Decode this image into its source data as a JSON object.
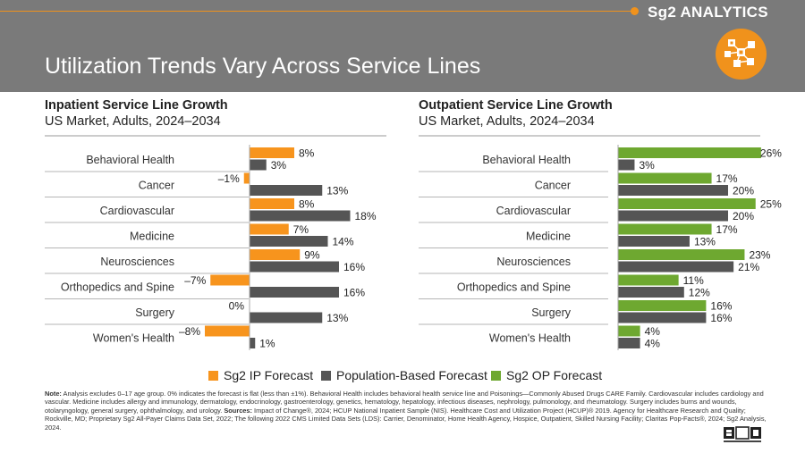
{
  "brand": "Sg2 ANALYTICS",
  "title": "Utilization Trends Vary Across Service Lines",
  "colors": {
    "ip": "#f7941d",
    "pop": "#555555",
    "op": "#6ea830",
    "accent": "#f0921c"
  },
  "legend": [
    {
      "label": "Sg2 IP Forecast",
      "color": "#f7941d"
    },
    {
      "label": "Population-Based Forecast",
      "color": "#555555"
    },
    {
      "label": "Sg2 OP Forecast",
      "color": "#6ea830"
    }
  ],
  "note": {
    "label_note": "Note:",
    "text1": " Analysis excludes 0–17 age group. 0% indicates the forecast is flat (less than ±1%). Behavioral Health includes behavioral health service line and Poisonings—Commonly Abused Drugs CARE Family. Cardiovascular includes cardiology and vascular. Medicine includes allergy and immunology, dermatology, endocrinology, gastroenterology, genetics, hematology, hepatology, infectious diseases, nephrology, pulmonology, and rheumatology. Surgery includes burns and wounds, otolaryngology, general surgery, ophthalmology, and urology. ",
    "label_sources": "Sources:",
    "text2": " Impact of Change®, 2024; HCUP National Inpatient Sample (NIS). Healthcare Cost and Utilization Project (HCUP)® 2019. Agency for Healthcare Research and Quality; Rockville, MD; Proprietary Sg2 All-Payer Claims Data Set, 2022; The following 2022 CMS Limited Data Sets (LDS): Carrier, Denominator, Home Health Agency, Hospice, Outpatient, Skilled Nursing Facility; Claritas Pop-Facts®, 2024; Sg2 Analysis, 2024."
  },
  "chart_data": [
    {
      "type": "bar",
      "orientation": "horizontal",
      "title": "Inpatient Service Line Growth",
      "subtitle": "US Market, Adults, 2024–2034",
      "categories": [
        "Behavioral Health",
        "Cancer",
        "Cardiovascular",
        "Medicine",
        "Neurosciences",
        "Orthopedics and Spine",
        "Surgery",
        "Women's Health"
      ],
      "series": [
        {
          "name": "Sg2 IP Forecast",
          "color": "#f7941d",
          "values": [
            8,
            -1,
            8,
            7,
            9,
            -7,
            0,
            -8
          ]
        },
        {
          "name": "Population-Based Forecast",
          "color": "#555555",
          "values": [
            3,
            13,
            18,
            14,
            16,
            16,
            13,
            1
          ]
        }
      ],
      "labels": [
        [
          "8%",
          "–1%",
          "8%",
          "7%",
          "9%",
          "–7%",
          "0%",
          "–8%"
        ],
        [
          "3%",
          "13%",
          "18%",
          "14%",
          "16%",
          "16%",
          "13%",
          "1%"
        ]
      ],
      "unit": "%"
    },
    {
      "type": "bar",
      "orientation": "horizontal",
      "title": "Outpatient Service Line Growth",
      "subtitle": "US Market, Adults, 2024–2034",
      "categories": [
        "Behavioral Health",
        "Cancer",
        "Cardiovascular",
        "Medicine",
        "Neurosciences",
        "Orthopedics and Spine",
        "Surgery",
        "Women's Health"
      ],
      "series": [
        {
          "name": "Sg2 OP Forecast",
          "color": "#6ea830",
          "values": [
            26,
            17,
            25,
            17,
            23,
            11,
            16,
            4
          ]
        },
        {
          "name": "Population-Based Forecast",
          "color": "#555555",
          "values": [
            3,
            20,
            20,
            13,
            21,
            12,
            16,
            4
          ]
        }
      ],
      "labels": [
        [
          "26%",
          "17%",
          "25%",
          "17%",
          "23%",
          "11%",
          "16%",
          "4%"
        ],
        [
          "3%",
          "20%",
          "20%",
          "13%",
          "21%",
          "12%",
          "16%",
          "4%"
        ]
      ],
      "unit": "%"
    }
  ]
}
